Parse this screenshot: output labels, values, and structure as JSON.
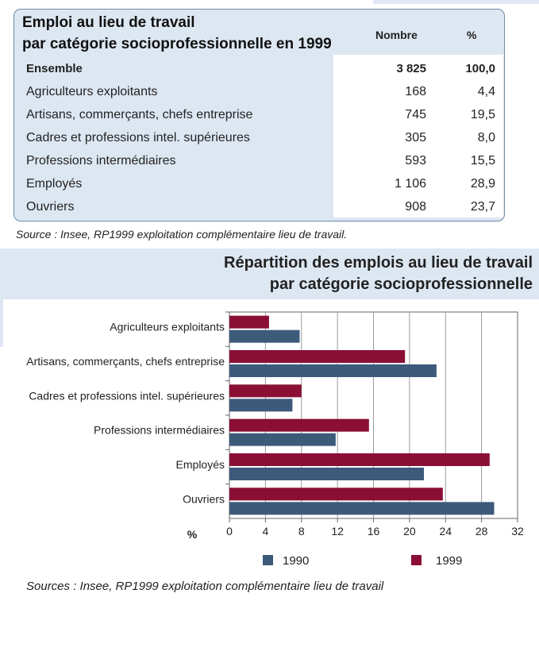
{
  "table": {
    "title_line1": "Emploi au lieu de travail",
    "title_line2": "par  catégorie socioprofessionnelle en 1999",
    "col_nombre": "Nombre",
    "col_pct": "%",
    "rows": [
      {
        "label": "Ensemble",
        "nombre": "3 825",
        "pct": "100,0",
        "bold": true
      },
      {
        "label": "Agriculteurs exploitants",
        "nombre": "168",
        "pct": "4,4"
      },
      {
        "label": "Artisans, commerçants, chefs entreprise",
        "nombre": "745",
        "pct": "19,5"
      },
      {
        "label": "Cadres et professions intel. supérieures",
        "nombre": "305",
        "pct": "8,0"
      },
      {
        "label": "Professions intermédiaires",
        "nombre": "593",
        "pct": "15,5"
      },
      {
        "label": "Employés",
        "nombre": "1 106",
        "pct": "28,9"
      },
      {
        "label": "Ouvriers",
        "nombre": "908",
        "pct": "23,7"
      }
    ],
    "source": "Source : Insee, RP1999 exploitation complémentaire lieu de travail."
  },
  "chart_header": {
    "line1": "Répartition des emplois au lieu de travail",
    "line2": "par catégorie socioprofessionnelle"
  },
  "chart_data": {
    "type": "bar",
    "orientation": "horizontal",
    "title": "Répartition des emplois au lieu de travail par catégorie socioprofessionnelle",
    "categories": [
      "Agriculteurs exploitants",
      "Artisans, commerçants, chefs entreprise",
      "Cadres et professions intel. supérieures",
      "Professions intermédiaires",
      "Employés",
      "Ouvriers"
    ],
    "series": [
      {
        "name": "1990",
        "color": "#3d5a7a",
        "values": [
          7.8,
          23.0,
          7.0,
          11.8,
          21.6,
          29.4
        ]
      },
      {
        "name": "1999",
        "color": "#8b0f35",
        "values": [
          4.4,
          19.5,
          8.0,
          15.5,
          28.9,
          23.7
        ]
      }
    ],
    "xlabel": "%",
    "xlim": [
      0,
      32
    ],
    "xticks": [
      0,
      4,
      8,
      12,
      16,
      20,
      24,
      28,
      32
    ],
    "grid": true,
    "legend": "bottom"
  },
  "chart_source": "Sources : Insee, RP1999 exploitation complémentaire lieu de travail"
}
